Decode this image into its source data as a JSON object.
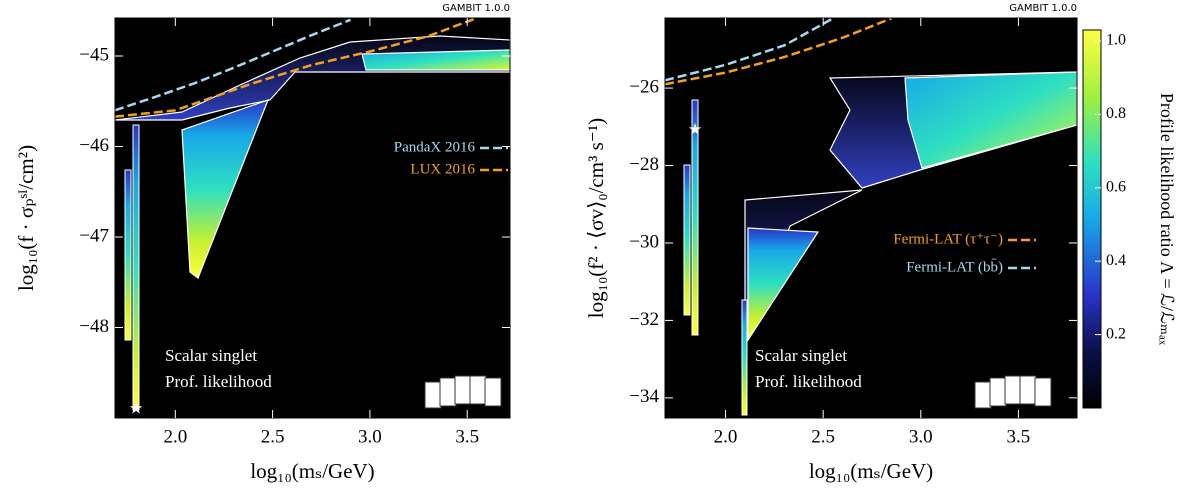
{
  "charts": [
    {
      "type": "likelihood-map",
      "watermark": "GAMBIT 1.0.0",
      "x_label": "log₁₀(mₛ/GeV)",
      "y_label": "log₁₀(f · σₚˢᴵ/cm²)",
      "xlim": [
        1.69,
        3.72
      ],
      "ylim": [
        -49.0,
        -44.58
      ],
      "xticks": [
        {
          "value": 2,
          "label": "2.0"
        },
        2.5,
        {
          "value": 3,
          "label": "3.0"
        },
        3.5
      ],
      "yticks": [
        {
          "value": -48,
          "label": "−48"
        },
        {
          "value": -47,
          "label": "−47"
        },
        {
          "value": -46,
          "label": "−46"
        },
        {
          "value": -45,
          "label": "−45"
        }
      ],
      "annotations": [
        "Scalar singlet",
        "Prof. likelihood"
      ],
      "series": [
        {
          "name": "PandaX 2016",
          "color": "#a6d8f0",
          "x": [
            1.69,
            1.9,
            2.1,
            2.3,
            2.5,
            2.7,
            2.9
          ],
          "values": [
            -45.6,
            -45.45,
            -45.3,
            -45.13,
            -44.95,
            -44.77,
            -44.6
          ]
        },
        {
          "name": "LUX 2016",
          "color": "#f5a01a",
          "x": [
            1.69,
            2.0,
            2.2,
            2.4,
            2.7,
            3.0,
            3.3,
            3.55
          ],
          "values": [
            -45.67,
            -45.6,
            -45.45,
            -45.3,
            -45.1,
            -44.95,
            -44.78,
            -44.58
          ]
        }
      ]
    },
    {
      "type": "likelihood-map",
      "watermark": "GAMBIT 1.0.0",
      "x_label": "log₁₀(mₛ/GeV)",
      "y_label": "log₁₀(f² · ⟨σv⟩₀/cm³ s⁻¹)",
      "xlim": [
        1.69,
        3.8
      ],
      "ylim": [
        -34.52,
        -24.19
      ],
      "xticks": [
        {
          "value": 2,
          "label": "2.0"
        },
        2.5,
        {
          "value": 3,
          "label": "3.0"
        },
        3.5
      ],
      "yticks": [
        {
          "value": -34,
          "label": "−34"
        },
        {
          "value": -32,
          "label": "−32"
        },
        {
          "value": -30,
          "label": "−30"
        },
        {
          "value": -28,
          "label": "−28"
        },
        {
          "value": -26,
          "label": "−26"
        }
      ],
      "annotations": [
        "Scalar singlet",
        "Prof. likelihood"
      ],
      "series": [
        {
          "name": "Fermi-LAT (τ⁺τ⁻)",
          "color": "#f5a01a",
          "x": [
            1.69,
            2.0,
            2.3,
            2.6,
            2.85
          ],
          "values": [
            -25.9,
            -25.6,
            -25.2,
            -24.7,
            -24.2
          ]
        },
        {
          "name": "Fermi-LAT (bb̄)",
          "color": "#a6d8f0",
          "x": [
            1.69,
            2.0,
            2.3,
            2.55
          ],
          "values": [
            -25.8,
            -25.4,
            -24.9,
            -24.2
          ]
        }
      ],
      "colorbar": {
        "label": "Profile likelihood ratio Λ = ℒ/ℒₘₐₓ",
        "lim": [
          0,
          1.03
        ],
        "ticks": [
          0.2,
          0.4,
          0.6,
          0.8,
          {
            "value": 1,
            "label": "1.0"
          }
        ]
      }
    }
  ]
}
